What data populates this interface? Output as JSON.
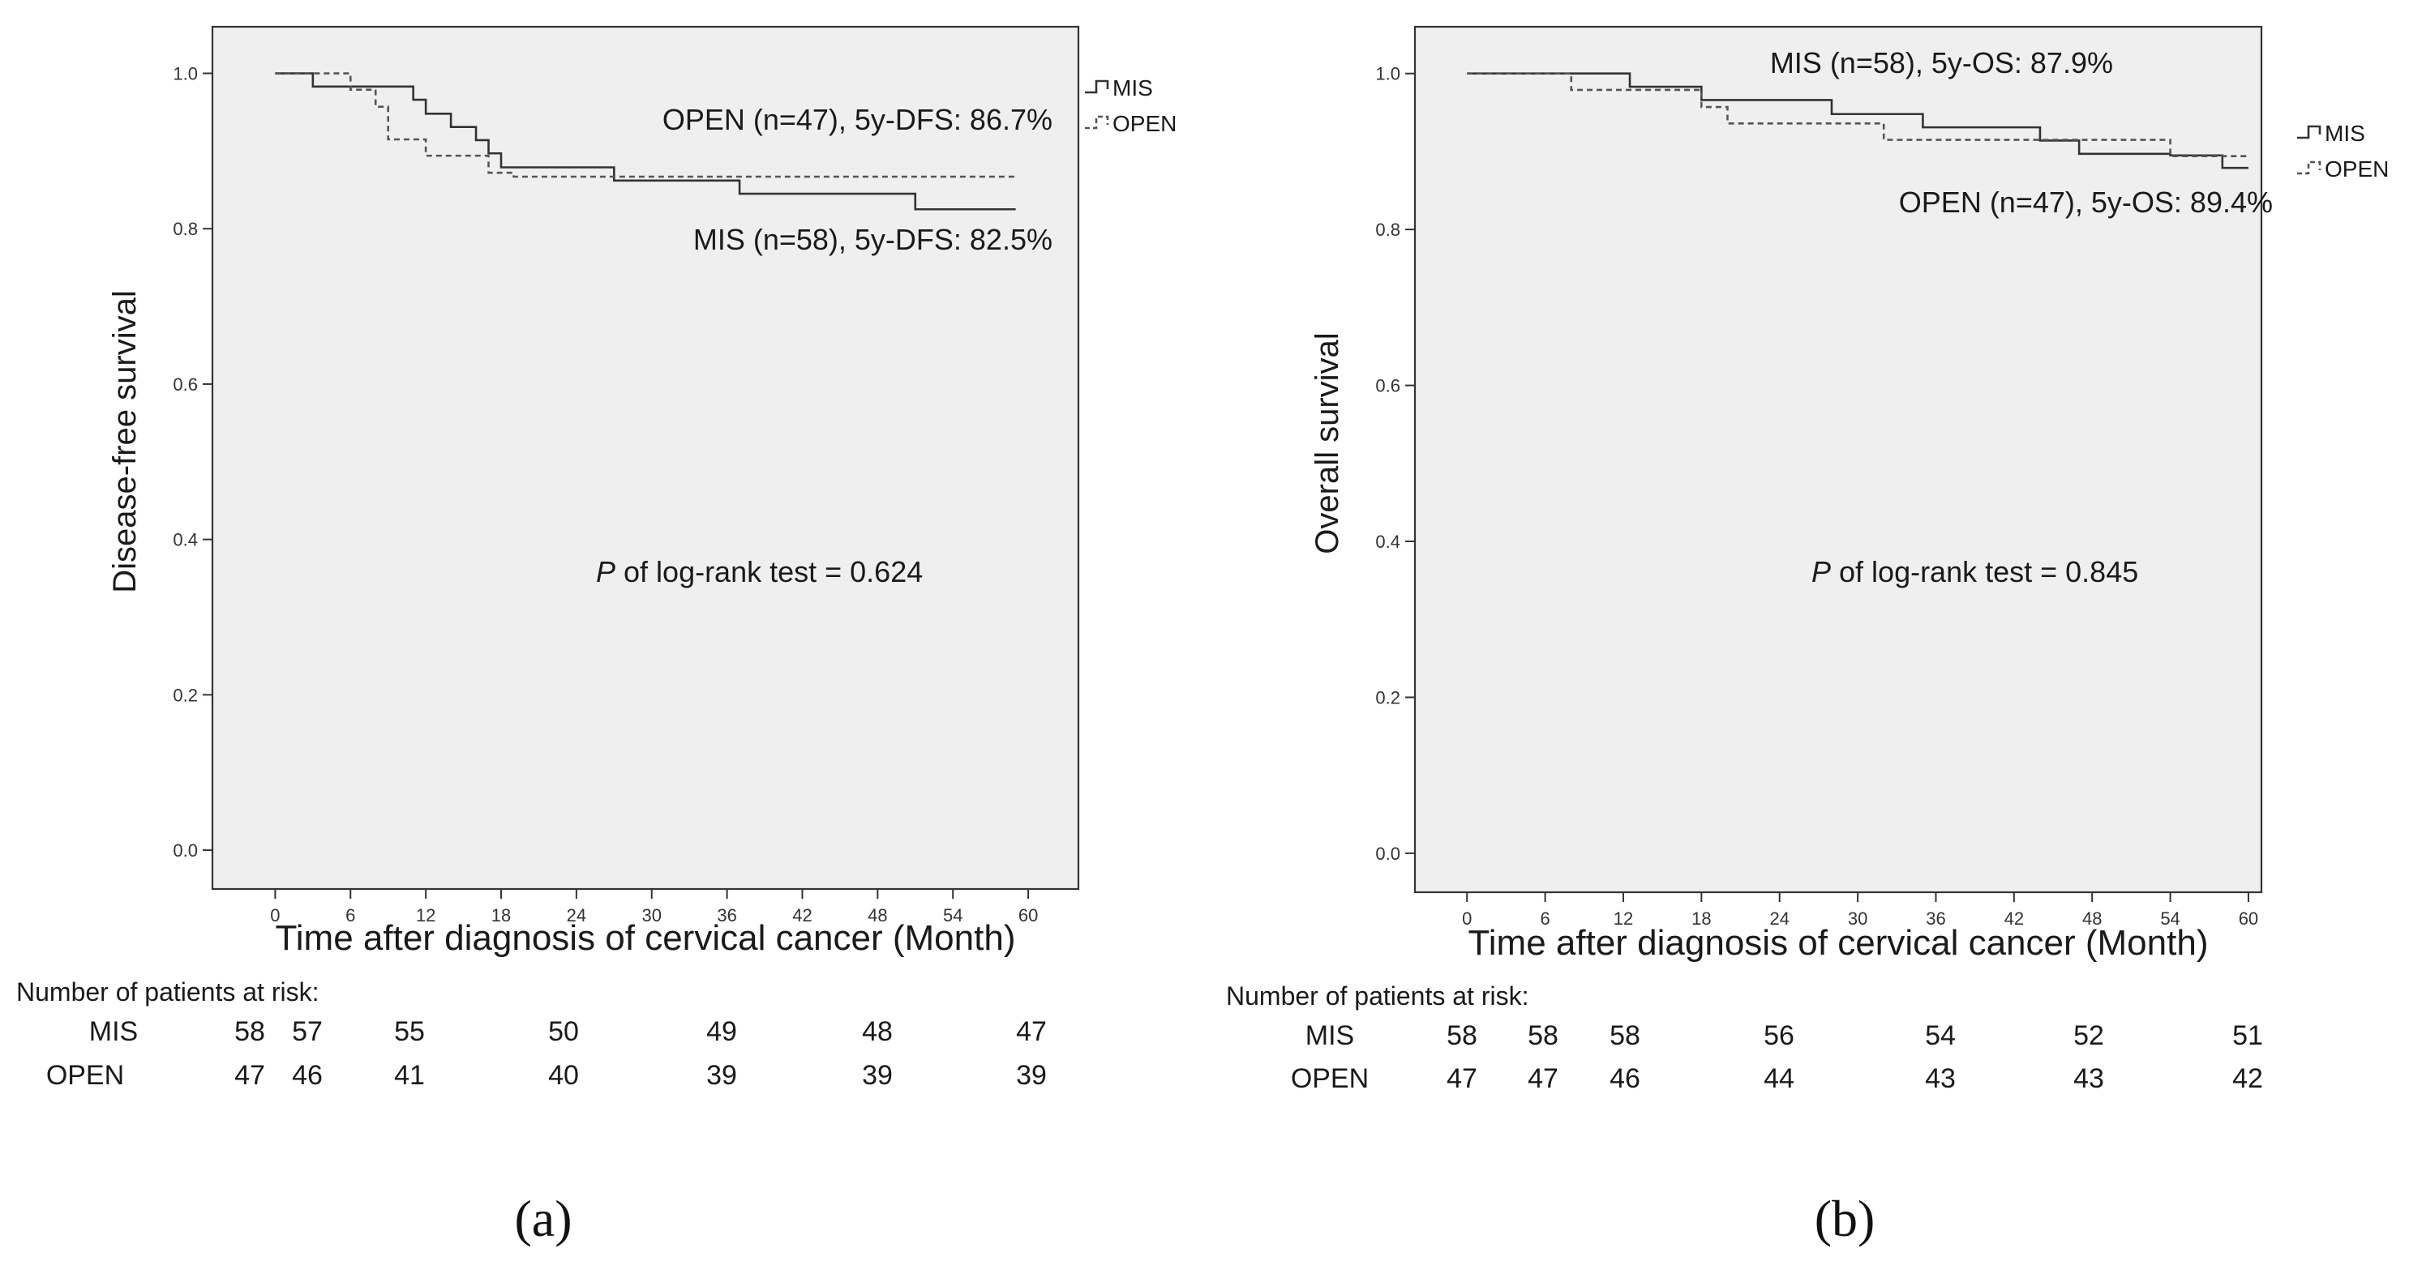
{
  "chart_data": [
    {
      "type": "line",
      "panel_label": "(a)",
      "xlabel": "Time after diagnosis of cervical cancer (Month)",
      "ylabel": "Disease-free survival",
      "xlim": [
        -5,
        64
      ],
      "ylim": [
        -0.05,
        1.06
      ],
      "xticks": [
        0,
        6,
        12,
        18,
        24,
        30,
        36,
        42,
        48,
        54,
        60
      ],
      "yticks": [
        0.0,
        0.2,
        0.4,
        0.6,
        0.8,
        1.0
      ],
      "ytick_labels": [
        "0.0",
        "0.2",
        "0.4",
        "0.6",
        "0.8",
        "1.0"
      ],
      "grid": false,
      "legend_position": "top-right",
      "series": [
        {
          "name": "MIS",
          "line_style": "solid",
          "color": "#333333",
          "x": [
            0,
            3,
            11,
            12,
            14,
            16,
            17,
            18,
            27,
            37,
            51,
            59
          ],
          "y": [
            1.0,
            0.983,
            0.966,
            0.948,
            0.931,
            0.914,
            0.897,
            0.879,
            0.862,
            0.845,
            0.825,
            0.825
          ]
        },
        {
          "name": "OPEN",
          "line_style": "dashed",
          "color": "#555555",
          "x": [
            0,
            6,
            8,
            9,
            12,
            17,
            19,
            59
          ],
          "y": [
            1.0,
            0.979,
            0.957,
            0.915,
            0.894,
            0.872,
            0.867,
            0.867
          ]
        }
      ],
      "annotations": {
        "open_label": "OPEN (n=47), 5y-DFS: 86.7%",
        "mis_label": "MIS (n=58), 5y-DFS: 82.5%",
        "p_italic": "P",
        "p_rest": " of log-rank test = 0.624"
      },
      "risk_table": {
        "title": "Number of patients at risk:",
        "times": [
          0,
          4.5,
          12,
          24,
          36,
          48,
          60
        ],
        "rows": [
          {
            "group": "MIS",
            "values": [
              "58",
              "57",
              "55",
              "50",
              "49",
              "48",
              "47"
            ]
          },
          {
            "group": "OPEN",
            "values": [
              "47",
              "46",
              "41",
              "40",
              "39",
              "39",
              "39"
            ]
          }
        ]
      }
    },
    {
      "type": "line",
      "panel_label": "(b)",
      "xlabel": "Time after diagnosis of cervical cancer (Month)",
      "ylabel": "Overall survival",
      "xlim": [
        -4,
        61
      ],
      "ylim": [
        -0.05,
        1.06
      ],
      "xticks": [
        0,
        6,
        12,
        18,
        24,
        30,
        36,
        42,
        48,
        54,
        60
      ],
      "yticks": [
        0.0,
        0.2,
        0.4,
        0.6,
        0.8,
        1.0
      ],
      "ytick_labels": [
        "0.0",
        "0.2",
        "0.4",
        "0.6",
        "0.8",
        "1.0"
      ],
      "grid": false,
      "legend_position": "top-right",
      "series": [
        {
          "name": "MIS",
          "line_style": "solid",
          "color": "#333333",
          "x": [
            0,
            12.5,
            18,
            28,
            35,
            44,
            47,
            54,
            58,
            60
          ],
          "y": [
            1.0,
            0.983,
            0.966,
            0.948,
            0.931,
            0.914,
            0.897,
            0.895,
            0.879,
            0.879
          ]
        },
        {
          "name": "OPEN",
          "line_style": "dashed",
          "color": "#555555",
          "x": [
            0,
            8,
            18,
            20,
            32,
            43,
            54,
            60
          ],
          "y": [
            1.0,
            0.979,
            0.957,
            0.936,
            0.915,
            0.915,
            0.894,
            0.894
          ]
        }
      ],
      "annotations": {
        "mis_label": "MIS (n=58), 5y-OS: 87.9%",
        "open_label": "OPEN (n=47), 5y-OS: 89.4%",
        "p_italic": "P",
        "p_rest": " of log-rank test = 0.845"
      },
      "risk_table": {
        "title": "Number of patients at risk:",
        "times": [
          0,
          6,
          12,
          24,
          36,
          48,
          60
        ],
        "rows": [
          {
            "group": "MIS",
            "values": [
              "58",
              "58",
              "58",
              "56",
              "54",
              "52",
              "51"
            ]
          },
          {
            "group": "OPEN",
            "values": [
              "47",
              "47",
              "46",
              "44",
              "43",
              "43",
              "42"
            ]
          }
        ]
      }
    }
  ]
}
